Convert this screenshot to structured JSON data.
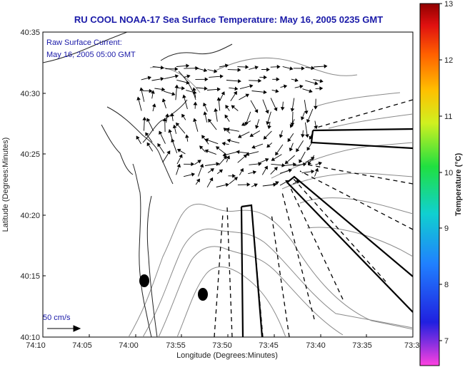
{
  "title": "RU COOL  NOAA-17  Sea Surface Temperature:  May 16, 2005 0235 GMT",
  "annotation": {
    "line1": "Raw Surface Current:",
    "line2": "May 16, 2005 05:00 GMT"
  },
  "scale_label": "50 cm/s",
  "x_axis": {
    "label": "Longitude (Degrees:Minutes)",
    "ticks": [
      "74:10",
      "74:05",
      "74:00",
      "73:55",
      "73:50",
      "73:45",
      "73:40",
      "73:35",
      "73:3"
    ]
  },
  "y_axis": {
    "label": "Latitude (Degrees:Minutes)",
    "ticks": [
      "40:35",
      "40:30",
      "40:25",
      "40:20",
      "40:15",
      "40:10"
    ]
  },
  "colorbar": {
    "label": "Temperature (°C)",
    "ticks": [
      "13",
      "12",
      "11",
      "10",
      "9",
      "8",
      "7"
    ]
  },
  "colors": {
    "title": "#1a1aa8",
    "annotation": "#1a1aa8",
    "coast": "#222222",
    "contour": "#8a8a8a",
    "vector": "#000000"
  }
}
